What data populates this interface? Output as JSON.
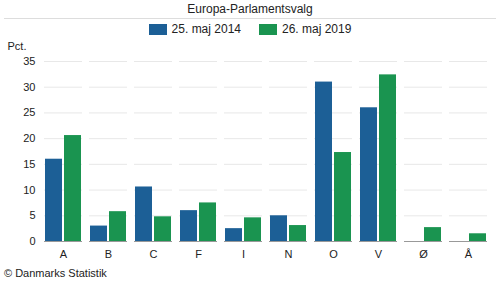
{
  "chart_data": {
    "type": "bar",
    "title": "Europa-Parlamentsvalg",
    "y_label": "Pct.",
    "caption": "© Danmarks Statistik",
    "categories": [
      "A",
      "B",
      "C",
      "F",
      "I",
      "N",
      "O",
      "V",
      "Ø",
      "Å"
    ],
    "series": [
      {
        "name": "25. maj 2014",
        "color": "#1c5f96",
        "values": [
          16.0,
          3.0,
          10.6,
          6.0,
          2.5,
          5.0,
          31.0,
          26.0,
          null,
          null
        ]
      },
      {
        "name": "26. maj 2019",
        "color": "#1a9450",
        "values": [
          20.6,
          5.8,
          4.8,
          7.5,
          4.6,
          3.1,
          17.3,
          32.4,
          2.7,
          1.5
        ]
      }
    ],
    "ylim": [
      0,
      35
    ],
    "yticks": [
      0,
      5,
      10,
      15,
      20,
      25,
      30,
      35
    ],
    "grid": true,
    "legend": "top"
  }
}
